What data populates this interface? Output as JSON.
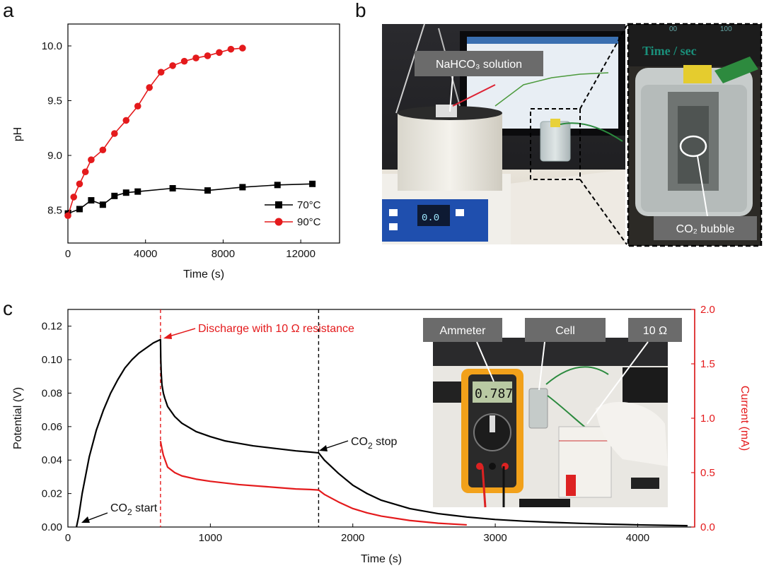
{
  "panels": {
    "a": "a",
    "b": "b",
    "c": "c"
  },
  "chart_data": [
    {
      "panel": "a",
      "type": "line",
      "xlabel": "Time (s)",
      "ylabel": "pH",
      "xlim": [
        0,
        14000
      ],
      "ylim": [
        8.2,
        10.2
      ],
      "xticks": [
        "0",
        "4000",
        "8000",
        "12000"
      ],
      "yticks": [
        "8.5",
        "9.0",
        "9.5",
        "10.0"
      ],
      "legend_position": "bottom-right",
      "series": [
        {
          "name": "70°C",
          "color": "#000000",
          "marker": "square",
          "x": [
            0,
            600,
            1200,
            1800,
            2400,
            3000,
            3600,
            5400,
            7200,
            9000,
            10800,
            12600
          ],
          "y": [
            8.47,
            8.51,
            8.59,
            8.55,
            8.63,
            8.66,
            8.67,
            8.7,
            8.68,
            8.71,
            8.73,
            8.74
          ]
        },
        {
          "name": "90°C",
          "color": "#e41a1c",
          "marker": "circle",
          "x": [
            0,
            300,
            600,
            900,
            1200,
            1800,
            2400,
            3000,
            3600,
            4200,
            4800,
            5400,
            6000,
            6600,
            7200,
            7800,
            8400,
            9000
          ],
          "y": [
            8.45,
            8.62,
            8.74,
            8.85,
            8.96,
            9.05,
            9.2,
            9.32,
            9.45,
            9.62,
            9.76,
            9.82,
            9.86,
            9.89,
            9.91,
            9.94,
            9.97,
            9.98
          ]
        }
      ]
    },
    {
      "panel": "c",
      "type": "line",
      "xlabel": "Time (s)",
      "ylabel_left": "Potential (V)",
      "ylabel_right": "Current (mA)",
      "xlim": [
        0,
        4400
      ],
      "ylim_left": [
        0,
        0.13
      ],
      "ylim_right": [
        0,
        2.0
      ],
      "xticks": [
        "0",
        "1000",
        "2000",
        "3000",
        "4000"
      ],
      "yticks_left": [
        "0.00",
        "0.02",
        "0.04",
        "0.06",
        "0.08",
        "0.10",
        "0.12"
      ],
      "yticks_right": [
        "0.0",
        "0.5",
        "1.0",
        "1.5",
        "2.0"
      ],
      "vlines": [
        {
          "x": 650,
          "color": "#e41a1c",
          "style": "dashed"
        },
        {
          "x": 1760,
          "color": "#000000",
          "style": "dashed"
        }
      ],
      "annotations": {
        "discharge": "Discharge with 10 Ω resistance",
        "co2_stop": "CO",
        "co2_stop_sub": "2",
        "co2_stop_tail": " stop",
        "co2_start": "CO",
        "co2_start_sub": "2",
        "co2_start_tail": " start"
      },
      "series": [
        {
          "name": "Potential",
          "axis": "left",
          "color": "#000000",
          "x": [
            60,
            75,
            100,
            150,
            200,
            250,
            300,
            350,
            400,
            450,
            500,
            550,
            600,
            650,
            652,
            655,
            660,
            670,
            680,
            700,
            750,
            800,
            900,
            1000,
            1100,
            1200,
            1300,
            1400,
            1500,
            1600,
            1700,
            1760,
            1800,
            1900,
            2000,
            2100,
            2200,
            2400,
            2600,
            2800,
            3000,
            3200,
            3400,
            3600,
            3800,
            4000,
            4200,
            4350
          ],
          "y": [
            0,
            0.006,
            0.02,
            0.042,
            0.058,
            0.07,
            0.08,
            0.088,
            0.095,
            0.1,
            0.104,
            0.107,
            0.11,
            0.112,
            0.1,
            0.092,
            0.085,
            0.08,
            0.077,
            0.072,
            0.066,
            0.062,
            0.057,
            0.054,
            0.0515,
            0.05,
            0.0485,
            0.0475,
            0.0465,
            0.0455,
            0.0448,
            0.0443,
            0.04,
            0.032,
            0.025,
            0.02,
            0.016,
            0.011,
            0.008,
            0.006,
            0.0045,
            0.0035,
            0.0028,
            0.0022,
            0.0017,
            0.0013,
            0.001,
            0.0008
          ]
        },
        {
          "name": "Current",
          "axis": "right",
          "color": "#e41a1c",
          "x": [
            650,
            660,
            670,
            700,
            750,
            800,
            900,
            1000,
            1200,
            1400,
            1600,
            1700,
            1760,
            1800,
            1900,
            2000,
            2100,
            2200,
            2400,
            2600,
            2800
          ],
          "y": [
            0.79,
            0.72,
            0.66,
            0.55,
            0.5,
            0.47,
            0.44,
            0.42,
            0.39,
            0.37,
            0.35,
            0.345,
            0.34,
            0.3,
            0.23,
            0.17,
            0.13,
            0.1,
            0.06,
            0.035,
            0.02
          ]
        }
      ]
    }
  ],
  "photos": {
    "b_main": {
      "label": "NaHCO₃ solution",
      "display": "0.0"
    },
    "b_zoom": {
      "label": "CO₂ bubble",
      "header": "Time / sec",
      "ruler_left": "00",
      "ruler_right": "100"
    },
    "c_inset": {
      "labels": [
        "Ammeter",
        "Cell",
        "10 Ω"
      ],
      "meter_reading": "0.787"
    }
  },
  "colors": {
    "red": "#e41a1c",
    "black": "#000000",
    "label_box": "#6b6b6b",
    "dashed_box": "#000000"
  }
}
